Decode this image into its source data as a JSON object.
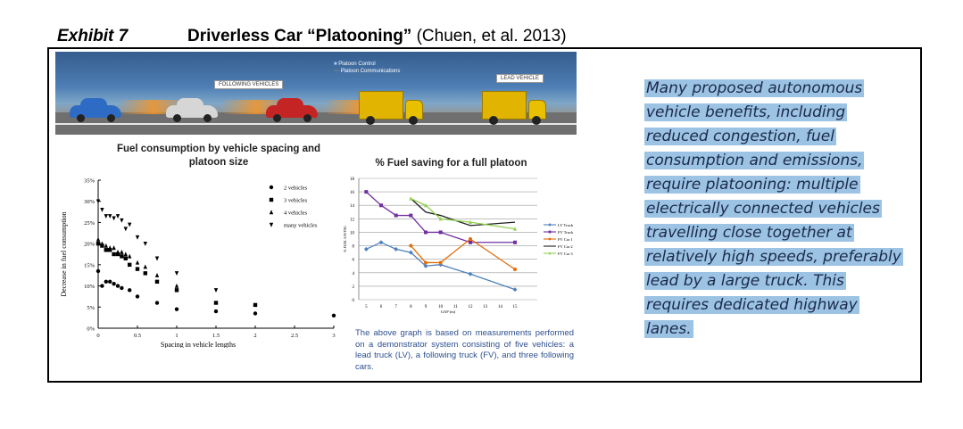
{
  "heading": {
    "exhibit": "Exhibit 7",
    "title": "Driverless Car “Platooning”",
    "citation": "(Chuen, et al. 2013)"
  },
  "banner": {
    "following_label": "FOLLOWING VEHICLES",
    "lead_label": "LEAD VEHICLE",
    "legend": [
      "Platoon Control",
      "Platoon Communications"
    ],
    "car_colors": [
      "#2d6bc4",
      "#d6d6d6",
      "#c42424"
    ]
  },
  "chart_data": [
    {
      "type": "scatter",
      "title": "Fuel consumption by vehicle spacing and platoon size",
      "xlabel": "Spacing in vehicle lengths",
      "ylabel": "Decrease in fuel consumption",
      "xlim": [
        0,
        3
      ],
      "ylim": [
        0,
        35
      ],
      "x_ticks": [
        "0",
        "0.5",
        "1",
        "1.5",
        "2",
        "2.5",
        "3"
      ],
      "y_ticks": [
        "0%",
        "5%",
        "10%",
        "15%",
        "20%",
        "25%",
        "30%",
        "35%"
      ],
      "legend_position": "top-right",
      "series": [
        {
          "name": "2 vehicles",
          "marker": "circle",
          "x": [
            0,
            0.05,
            0.1,
            0.15,
            0.2,
            0.25,
            0.3,
            0.4,
            0.5,
            0.75,
            1,
            1.5,
            2,
            3
          ],
          "y": [
            13.5,
            10,
            11,
            11,
            10.5,
            10,
            9.5,
            9,
            7.5,
            6,
            4.5,
            4,
            3.5,
            3
          ]
        },
        {
          "name": "3 vehicles",
          "marker": "square",
          "x": [
            0,
            0.05,
            0.1,
            0.15,
            0.2,
            0.25,
            0.3,
            0.35,
            0.4,
            0.5,
            0.6,
            0.75,
            1,
            1.5,
            2
          ],
          "y": [
            20,
            19.5,
            18.5,
            18.5,
            17.5,
            17.5,
            17,
            16.5,
            15,
            14,
            13,
            11,
            9,
            6,
            5.5
          ]
        },
        {
          "name": "4 vehicles",
          "marker": "triangle",
          "x": [
            0,
            0.05,
            0.1,
            0.15,
            0.2,
            0.25,
            0.3,
            0.35,
            0.4,
            0.5,
            0.6,
            0.75,
            1
          ],
          "y": [
            21,
            20,
            19.5,
            19,
            19,
            18,
            18,
            17.5,
            17,
            15.5,
            14.5,
            12.5,
            10
          ]
        },
        {
          "name": "many vehicles",
          "marker": "triangle-down",
          "x": [
            0,
            0.05,
            0.1,
            0.15,
            0.2,
            0.25,
            0.3,
            0.35,
            0.4,
            0.5,
            0.6,
            0.75,
            1,
            1.5
          ],
          "y": [
            30,
            28,
            26.5,
            26.5,
            26,
            26.5,
            25.5,
            23.5,
            24.5,
            21.5,
            20,
            16.5,
            13,
            9
          ]
        }
      ]
    },
    {
      "type": "line",
      "title": "% Fuel saving for a full platoon",
      "xlabel": "GAP (m)",
      "ylabel": "% FUEL SAVING",
      "xlim": [
        4.5,
        16.5
      ],
      "ylim": [
        0,
        18
      ],
      "x_ticks": [
        "5",
        "6",
        "7",
        "8",
        "9",
        "10",
        "11",
        "12",
        "13",
        "14",
        "15"
      ],
      "y_ticks": [
        "0",
        "2",
        "4",
        "6",
        "8",
        "10",
        "12",
        "14",
        "16",
        "18"
      ],
      "grid": true,
      "legend_position": "right",
      "series": [
        {
          "name": "LV Truck",
          "color": "#4f81bd",
          "marker": "diamond",
          "x": [
            5,
            6,
            7,
            8,
            9,
            10,
            12,
            15
          ],
          "y": [
            7.5,
            8.5,
            7.5,
            7,
            5,
            5.2,
            3.8,
            1.5
          ]
        },
        {
          "name": "FV Truck",
          "color": "#7030a0",
          "marker": "square",
          "x": [
            5,
            6,
            7,
            8,
            9,
            10,
            12,
            15
          ],
          "y": [
            16,
            14,
            12.5,
            12.5,
            10,
            10,
            8.5,
            8.5
          ]
        },
        {
          "name": "FV Car 1",
          "color": "#e36c09",
          "marker": "circle",
          "x": [
            8,
            9,
            10,
            12,
            15
          ],
          "y": [
            8,
            5.5,
            5.5,
            9,
            4.5
          ]
        },
        {
          "name": "FV Car 2",
          "color": "#1f1f1f",
          "marker": "none",
          "x": [
            8,
            9,
            10,
            12,
            15
          ],
          "y": [
            15,
            13,
            12.5,
            11,
            11.5
          ]
        },
        {
          "name": "FV Car 3",
          "color": "#92d050",
          "marker": "triangle",
          "x": [
            8,
            9,
            10,
            12,
            15
          ],
          "y": [
            15,
            14,
            12,
            11.5,
            10.5
          ]
        }
      ]
    }
  ],
  "caption": "The above graph is based on measurements performed on a demonstrator system consisting of five vehicles: a lead truck (LV), a following truck (FV), and three following cars.",
  "side_panel": {
    "lines": [
      "Many proposed autonomous",
      "vehicle benefits, including",
      "reduced congestion, fuel",
      "consumption and emissions,",
      "require platooning: multiple",
      "electrically connected vehicles",
      "travelling close together at",
      "relatively high speeds, preferably",
      "lead by a large truck. This",
      "requires dedicated highway",
      "lanes."
    ]
  }
}
